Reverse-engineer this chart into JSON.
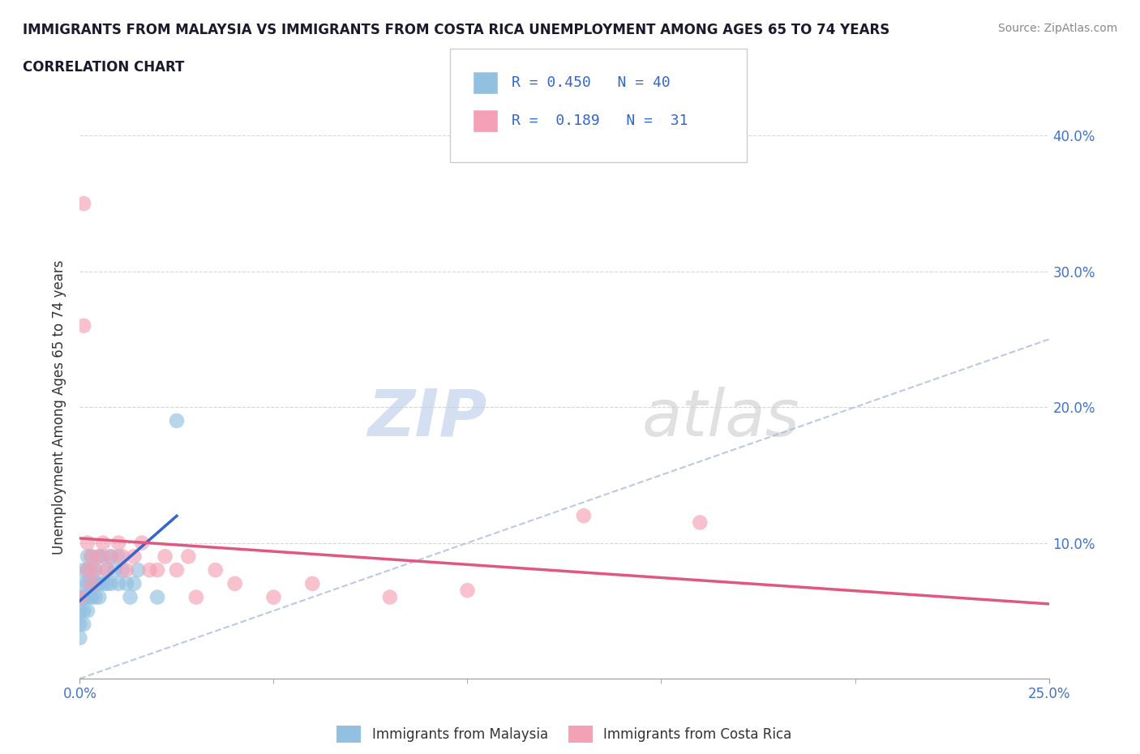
{
  "title_line1": "IMMIGRANTS FROM MALAYSIA VS IMMIGRANTS FROM COSTA RICA UNEMPLOYMENT AMONG AGES 65 TO 74 YEARS",
  "title_line2": "CORRELATION CHART",
  "source_text": "Source: ZipAtlas.com",
  "ylabel": "Unemployment Among Ages 65 to 74 years",
  "xlim": [
    0.0,
    0.25
  ],
  "ylim": [
    0.0,
    0.4
  ],
  "xtick_positions": [
    0.0,
    0.25
  ],
  "xtick_labels": [
    "0.0%",
    "25.0%"
  ],
  "ytick_positions": [
    0.1,
    0.2,
    0.3,
    0.4
  ],
  "ytick_labels": [
    "10.0%",
    "20.0%",
    "30.0%",
    "40.0%"
  ],
  "malaysia_color": "#92C0E0",
  "costa_rica_color": "#F4A0B5",
  "trend_malaysia_color": "#3366CC",
  "trend_costa_rica_color": "#E05880",
  "diagonal_color": "#AABBDD",
  "malaysia_R": 0.45,
  "malaysia_N": 40,
  "costa_rica_R": 0.189,
  "costa_rica_N": 31,
  "legend_label_malaysia": "Immigrants from Malaysia",
  "legend_label_costa_rica": "Immigrants from Costa Rica",
  "watermark_zip": "ZIP",
  "watermark_atlas": "atlas",
  "malaysia_x": [
    0.0,
    0.0,
    0.0,
    0.0,
    0.001,
    0.001,
    0.001,
    0.001,
    0.001,
    0.002,
    0.002,
    0.002,
    0.002,
    0.002,
    0.003,
    0.003,
    0.003,
    0.003,
    0.004,
    0.004,
    0.004,
    0.005,
    0.005,
    0.005,
    0.006,
    0.006,
    0.007,
    0.007,
    0.008,
    0.008,
    0.009,
    0.01,
    0.01,
    0.011,
    0.012,
    0.013,
    0.014,
    0.015,
    0.02,
    0.025
  ],
  "malaysia_y": [
    0.03,
    0.04,
    0.05,
    0.06,
    0.04,
    0.05,
    0.06,
    0.07,
    0.08,
    0.05,
    0.06,
    0.07,
    0.08,
    0.09,
    0.06,
    0.07,
    0.08,
    0.09,
    0.06,
    0.07,
    0.08,
    0.06,
    0.07,
    0.09,
    0.07,
    0.09,
    0.07,
    0.08,
    0.07,
    0.09,
    0.08,
    0.07,
    0.09,
    0.08,
    0.07,
    0.06,
    0.07,
    0.08,
    0.06,
    0.19
  ],
  "costa_rica_x": [
    0.0,
    0.001,
    0.001,
    0.002,
    0.002,
    0.003,
    0.003,
    0.004,
    0.005,
    0.006,
    0.007,
    0.008,
    0.01,
    0.011,
    0.012,
    0.014,
    0.016,
    0.018,
    0.02,
    0.022,
    0.025,
    0.028,
    0.03,
    0.035,
    0.04,
    0.05,
    0.06,
    0.08,
    0.1,
    0.13,
    0.16
  ],
  "costa_rica_y": [
    0.06,
    0.35,
    0.26,
    0.08,
    0.1,
    0.07,
    0.09,
    0.08,
    0.09,
    0.1,
    0.08,
    0.09,
    0.1,
    0.09,
    0.08,
    0.09,
    0.1,
    0.08,
    0.08,
    0.09,
    0.08,
    0.09,
    0.06,
    0.08,
    0.07,
    0.06,
    0.07,
    0.06,
    0.065,
    0.12,
    0.115
  ]
}
